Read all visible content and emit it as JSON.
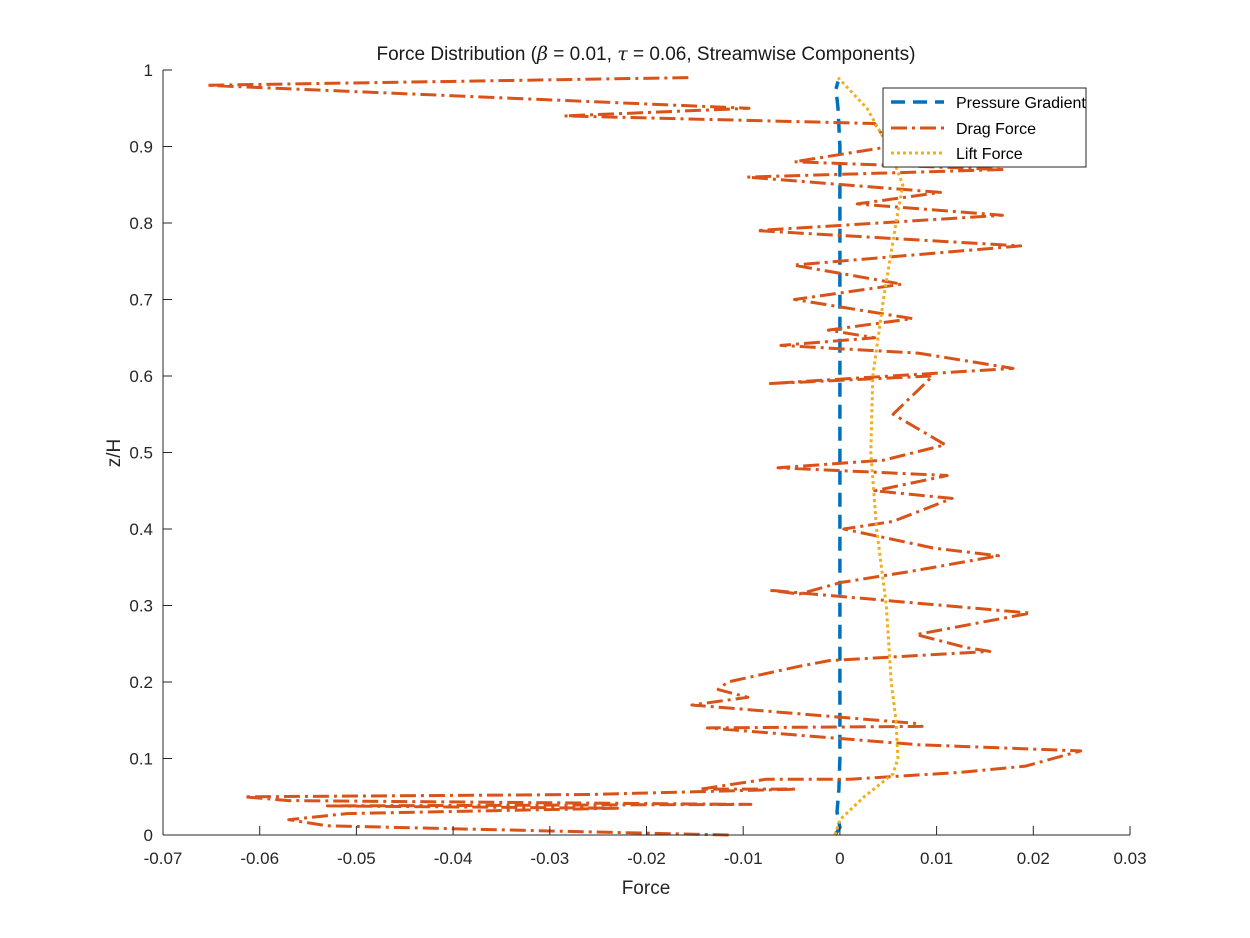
{
  "chart_data": {
    "type": "line",
    "title": {
      "prefix": "Force Distribution (",
      "beta_symbol": "β",
      "beta_text": " = 0.01, ",
      "tau_symbol": "τ",
      "tau_text": " = 0.06, Streamwise Components)"
    },
    "xlabel": "Force",
    "ylabel": "z/H",
    "xlim": [
      -0.07,
      0.03
    ],
    "ylim": [
      0,
      1
    ],
    "xticks": [
      -0.07,
      -0.06,
      -0.05,
      -0.04,
      -0.03,
      -0.02,
      -0.01,
      0,
      0.01,
      0.02,
      0.03
    ],
    "xtick_labels": [
      "-0.07",
      "-0.06",
      "-0.05",
      "-0.04",
      "-0.03",
      "-0.02",
      "-0.01",
      "0",
      "0.01",
      "0.02",
      "0.03"
    ],
    "yticks": [
      0,
      0.1,
      0.2,
      0.3,
      0.4,
      0.5,
      0.6,
      0.7,
      0.8,
      0.9,
      1
    ],
    "ytick_labels": [
      "0",
      "0.1",
      "0.2",
      "0.3",
      "0.4",
      "0.5",
      "0.6",
      "0.7",
      "0.8",
      "0.9",
      "1"
    ],
    "grid": false,
    "legend_position": "top-right",
    "series": [
      {
        "name": "Pressure Gradient",
        "color": "#0072BD",
        "style": "dashed",
        "points": [
          [
            -0.0005,
            0
          ],
          [
            0,
            0.01
          ],
          [
            -0.0003,
            0.03
          ],
          [
            -0.0001,
            0.06
          ],
          [
            0,
            0.1
          ],
          [
            0,
            0.2
          ],
          [
            0,
            0.3
          ],
          [
            0,
            0.4
          ],
          [
            0,
            0.5
          ],
          [
            0,
            0.6
          ],
          [
            0,
            0.7
          ],
          [
            0,
            0.8
          ],
          [
            0,
            0.9
          ],
          [
            -0.0002,
            0.95
          ],
          [
            -0.0004,
            0.975
          ],
          [
            -0.0002,
            0.985
          ]
        ]
      },
      {
        "name": "Drag Force",
        "color": "#D95319",
        "style": "dashdot",
        "points": [
          [
            -0.0115,
            0
          ],
          [
            -0.029,
            0.005
          ],
          [
            -0.053,
            0.012
          ],
          [
            -0.057,
            0.02
          ],
          [
            -0.051,
            0.028
          ],
          [
            -0.023,
            0.035
          ],
          [
            -0.053,
            0.038
          ],
          [
            -0.0092,
            0.04
          ],
          [
            -0.057,
            0.045
          ],
          [
            -0.0616,
            0.05
          ],
          [
            -0.026,
            0.053
          ],
          [
            -0.0045,
            0.06
          ],
          [
            -0.0144,
            0.06
          ],
          [
            -0.0076,
            0.073
          ],
          [
            0.0011,
            0.073
          ],
          [
            0.0125,
            0.082
          ],
          [
            0.0192,
            0.09
          ],
          [
            0.0249,
            0.11
          ],
          [
            0.008,
            0.118
          ],
          [
            -0.0137,
            0.14
          ],
          [
            0.0085,
            0.142
          ],
          [
            0.0077,
            0.146
          ],
          [
            -0.0153,
            0.17
          ],
          [
            -0.0095,
            0.18
          ],
          [
            -0.0126,
            0.19
          ],
          [
            -0.0116,
            0.2
          ],
          [
            -0.0044,
            0.22
          ],
          [
            -0.0011,
            0.228
          ],
          [
            0.0155,
            0.24
          ],
          [
            0.0131,
            0.245
          ],
          [
            0.0079,
            0.262
          ],
          [
            0.0197,
            0.29
          ],
          [
            -0.0073,
            0.32
          ],
          [
            -0.0042,
            0.315
          ],
          [
            0.0001,
            0.33
          ],
          [
            0.0075,
            0.345
          ],
          [
            0.0164,
            0.365
          ],
          [
            0.0097,
            0.375
          ],
          [
            0.0004,
            0.4
          ],
          [
            0.0055,
            0.41
          ],
          [
            0.0116,
            0.44
          ],
          [
            0.0036,
            0.45
          ],
          [
            0.0111,
            0.47
          ],
          [
            -0.0064,
            0.48
          ],
          [
            0.0045,
            0.49
          ],
          [
            0.0109,
            0.51
          ],
          [
            0.0055,
            0.55
          ],
          [
            0.0096,
            0.6
          ],
          [
            -0.0075,
            0.59
          ],
          [
            0.0179,
            0.61
          ],
          [
            0.0081,
            0.63
          ],
          [
            -0.0061,
            0.64
          ],
          [
            0.0036,
            0.65
          ],
          [
            -0.0012,
            0.66
          ],
          [
            0.0075,
            0.675
          ],
          [
            -0.0047,
            0.7
          ],
          [
            0.0064,
            0.72
          ],
          [
            -0.0048,
            0.745
          ],
          [
            0.0187,
            0.77
          ],
          [
            -0.0086,
            0.79
          ],
          [
            0.0168,
            0.81
          ],
          [
            0.0018,
            0.825
          ],
          [
            0.0104,
            0.84
          ],
          [
            -0.0096,
            0.86
          ],
          [
            0.017,
            0.87
          ],
          [
            -0.0047,
            0.88
          ],
          [
            0.0052,
            0.9
          ],
          [
            0.0036,
            0.93
          ],
          [
            -0.0285,
            0.94
          ],
          [
            -0.0094,
            0.95
          ],
          [
            -0.0655,
            0.98
          ],
          [
            -0.0155,
            0.99
          ]
        ]
      },
      {
        "name": "Lift Force",
        "color": "#EDB120",
        "style": "dotted",
        "points": [
          [
            -0.0005,
            0
          ],
          [
            0,
            0.02
          ],
          [
            0.0025,
            0.05
          ],
          [
            0.0055,
            0.08
          ],
          [
            0.006,
            0.1
          ],
          [
            0.0058,
            0.15
          ],
          [
            0.0053,
            0.2
          ],
          [
            0.0048,
            0.3
          ],
          [
            0.0038,
            0.4
          ],
          [
            0.0032,
            0.5
          ],
          [
            0.0034,
            0.6
          ],
          [
            0.0045,
            0.7
          ],
          [
            0.0058,
            0.8
          ],
          [
            0.0065,
            0.85
          ],
          [
            0.005,
            0.9
          ],
          [
            0.0028,
            0.95
          ],
          [
            -0.0002,
            0.99
          ]
        ]
      }
    ]
  }
}
